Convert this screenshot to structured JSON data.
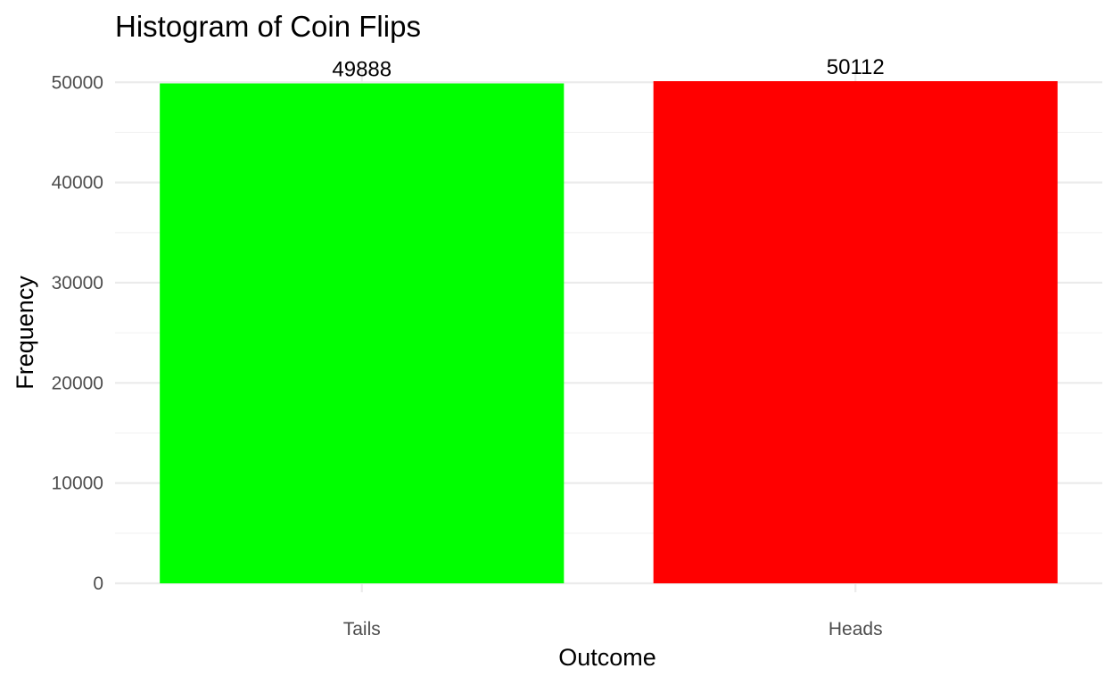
{
  "chart_data": {
    "type": "bar",
    "title": "Histogram of Coin Flips",
    "xlabel": "Outcome",
    "ylabel": "Frequency",
    "categories": [
      "Tails",
      "Heads"
    ],
    "values": [
      49888,
      50112
    ],
    "data_labels": [
      "49888",
      "50112"
    ],
    "colors": [
      "#00ff00",
      "#ff0000"
    ],
    "ylim": [
      0,
      50112
    ],
    "yticks": [
      0,
      10000,
      20000,
      30000,
      40000,
      50000
    ],
    "ytick_labels": [
      "0",
      "10000",
      "20000",
      "30000",
      "40000",
      "50000"
    ],
    "grid": true,
    "legend": "none"
  }
}
